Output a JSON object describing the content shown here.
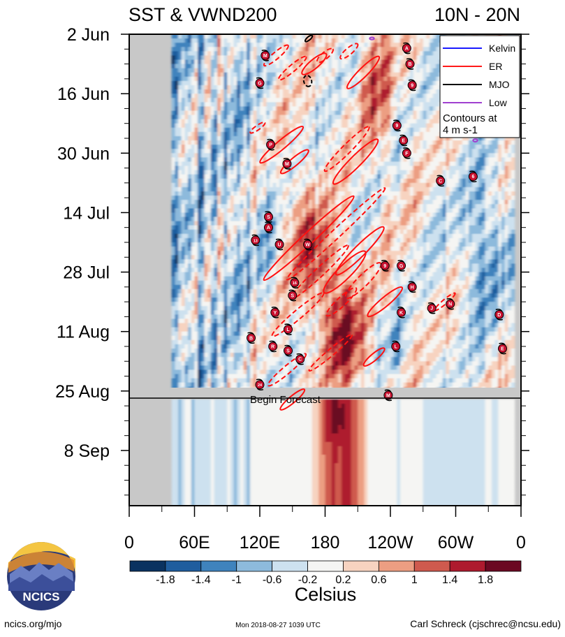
{
  "chart_data": {
    "type": "heatmap",
    "title_left": "SST & VWND200",
    "title_right": "10N - 20N",
    "x_ticks": [
      "0",
      "60E",
      "120E",
      "180",
      "120W",
      "60W",
      "0"
    ],
    "x_tick_lon": [
      0,
      60,
      120,
      180,
      240,
      300,
      360
    ],
    "y_ticks": [
      "2 Jun",
      "16 Jun",
      "30 Jun",
      "14 Jul",
      "28 Jul",
      "11 Aug",
      "25 Aug",
      "8 Sep"
    ],
    "y_tick_day": [
      0,
      14,
      28,
      42,
      56,
      70,
      84,
      98
    ],
    "y_range_days": [
      0,
      111
    ],
    "forecast_day": 85.5,
    "forecast_label": "Begin Forecast",
    "colorbar": {
      "label": "Celsius",
      "ticks": [
        "-1.8",
        "-1.4",
        "-1",
        "-0.6",
        "-0.2",
        "0.2",
        "0.6",
        "1",
        "1.4",
        "1.8"
      ],
      "colors": [
        "#0a3260",
        "#1f5d9e",
        "#3f83bd",
        "#8dbadc",
        "#cde1ef",
        "#f5f5f3",
        "#f7d3c0",
        "#ec9e82",
        "#cf5a4e",
        "#ae1a2e",
        "#6b0822"
      ]
    },
    "legend": {
      "items": [
        {
          "name": "Kelvin",
          "color": "#1a1aff"
        },
        {
          "name": "ER",
          "color": "#ff1a1a"
        },
        {
          "name": "MJO",
          "color": "#000000"
        },
        {
          "name": "Low",
          "color": "#a040d0"
        }
      ],
      "note_line1": "Contours at",
      "note_line2": "4 m s-1"
    },
    "storms": [
      {
        "label": "M",
        "lon": 125,
        "day": 5
      },
      {
        "label": "G",
        "lon": 120,
        "day": 11.5
      },
      {
        "label": "A",
        "lon": 255,
        "day": 3.3
      },
      {
        "label": "B",
        "lon": 258,
        "day": 7
      },
      {
        "label": "9",
        "lon": 260,
        "day": 12
      },
      {
        "label": "9",
        "lon": 246,
        "day": 21.5
      },
      {
        "label": "E",
        "lon": 252,
        "day": 25
      },
      {
        "label": "F",
        "lon": 255,
        "day": 28
      },
      {
        "label": "P",
        "lon": 130,
        "day": 26
      },
      {
        "label": "M",
        "lon": 145,
        "day": 30.5
      },
      {
        "label": "C",
        "lon": 286,
        "day": 34.5
      },
      {
        "label": "6",
        "lon": 316,
        "day": 33.5
      },
      {
        "label": "S",
        "lon": 128,
        "day": 43
      },
      {
        "label": "A",
        "lon": 128,
        "day": 45.5
      },
      {
        "label": "13",
        "lon": 116,
        "day": 48.5
      },
      {
        "label": "U",
        "lon": 138,
        "day": 49.5
      },
      {
        "label": "W",
        "lon": 164,
        "day": 49.5
      },
      {
        "label": "9",
        "lon": 235,
        "day": 54.5
      },
      {
        "label": "G",
        "lon": 250,
        "day": 54.5
      },
      {
        "label": "16",
        "lon": 152,
        "day": 58.5
      },
      {
        "label": "S",
        "lon": 150,
        "day": 61.5
      },
      {
        "label": "H",
        "lon": 260,
        "day": 59.5
      },
      {
        "label": "Y",
        "lon": 134,
        "day": 65.5
      },
      {
        "label": "K",
        "lon": 250,
        "day": 65.5
      },
      {
        "label": "J",
        "lon": 278,
        "day": 64.5
      },
      {
        "label": "N",
        "lon": 295,
        "day": 63.5
      },
      {
        "label": "L",
        "lon": 146,
        "day": 69.5
      },
      {
        "label": "D",
        "lon": 340,
        "day": 66
      },
      {
        "label": "B",
        "lon": 112,
        "day": 71.5
      },
      {
        "label": "R",
        "lon": 132,
        "day": 73.5
      },
      {
        "label": "S",
        "lon": 146,
        "day": 74.5
      },
      {
        "label": "C",
        "lon": 157,
        "day": 76.5
      },
      {
        "label": "L",
        "lon": 245,
        "day": 73.5
      },
      {
        "label": "E",
        "lon": 343,
        "day": 74
      },
      {
        "label": "24",
        "lon": 120,
        "day": 82.5
      },
      {
        "label": "M",
        "lon": 238,
        "day": 85
      }
    ]
  },
  "footer": {
    "logo_text": "NCICS",
    "left": "ncics.org/mjo",
    "center": "Mon 2018-08-27 1039 UTC",
    "right": "Carl Schreck (cjschrec@ncsu.edu)"
  }
}
